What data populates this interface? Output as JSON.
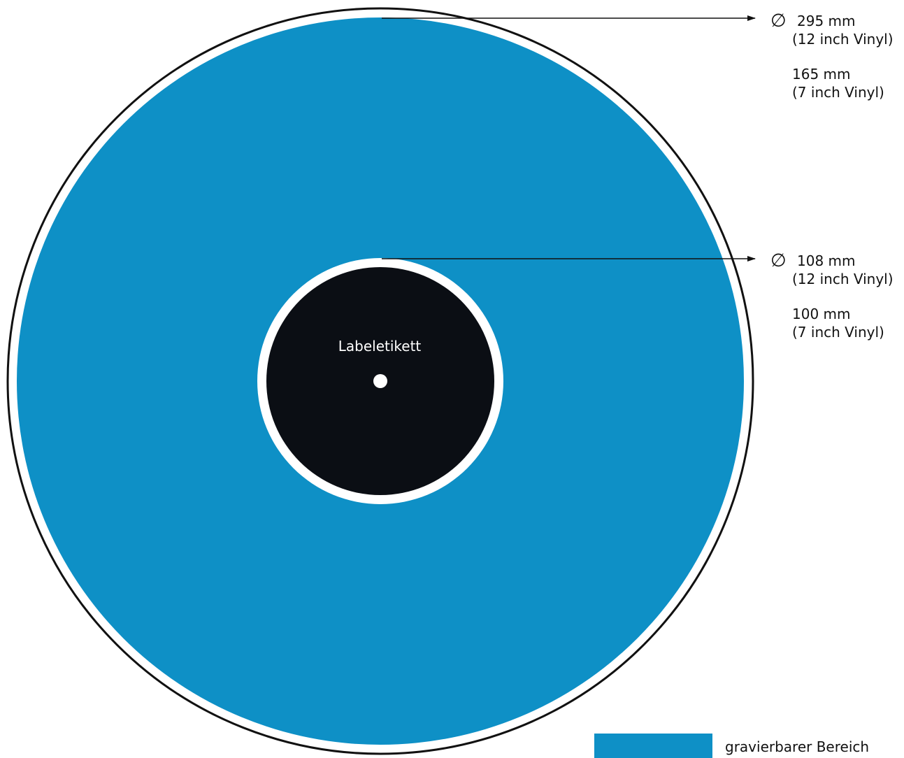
{
  "colors": {
    "engravable_area": "#0e90c6",
    "label": "#0b0e14",
    "outline": "#111111",
    "background": "#ffffff"
  },
  "icons": {
    "diameter": "diameter-icon",
    "arrow": "arrow-right-icon"
  },
  "diameter_symbol": "∅",
  "outer_dimension": {
    "value_12": "295 mm",
    "note_12": "(12 inch Vinyl)",
    "value_7": "165 mm",
    "note_7": "(7 inch Vinyl)"
  },
  "inner_dimension": {
    "value_12": "108 mm",
    "note_12": "(12 inch Vinyl)",
    "value_7": "100 mm",
    "note_7": "(7 inch Vinyl)"
  },
  "label": {
    "text": "Labeletikett"
  },
  "legend": {
    "text": "gravierbarer Bereich"
  }
}
